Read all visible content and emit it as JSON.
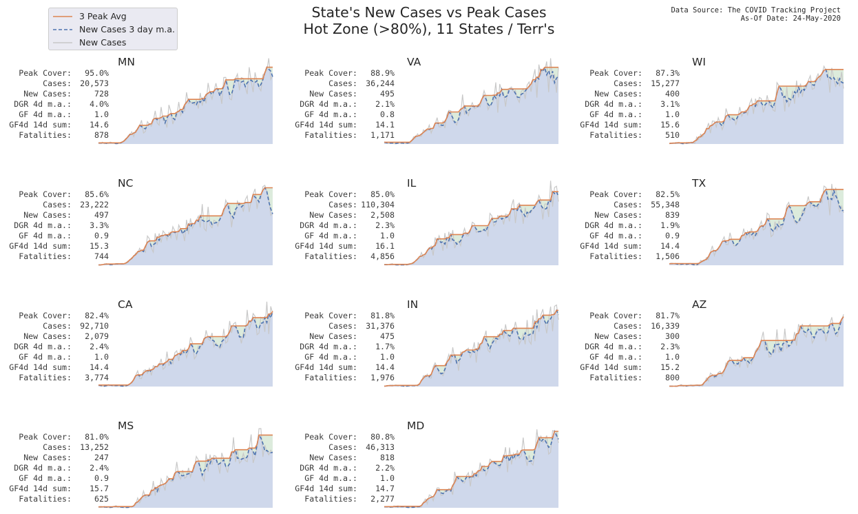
{
  "title_line1": "State's New Cases vs Peak Cases",
  "title_line2": "Hot Zone (>80%), 11 States / Terr's",
  "source_line1": "Data Source: The COVID Tracking Project",
  "source_line2": "As-Of Date: 24-May-2020",
  "legend": [
    {
      "label": "3 Peak Avg",
      "color": "#dd8452",
      "dash": "none"
    },
    {
      "label": "New Cases 3 day m.a.",
      "color": "#4c72b0",
      "dash": "5,3"
    },
    {
      "label": "New Cases",
      "color": "#c8c8c8",
      "dash": "none"
    }
  ],
  "stat_labels": [
    "Peak Cover:",
    "Cases:",
    "New Cases:",
    "DGR 4d m.a.:",
    "GF 4d m.a.:",
    "GF4d 14d sum:",
    "Fatalities:"
  ],
  "colors": {
    "peak": "#dd8452",
    "ma": "#4c72b0",
    "new_cases": "#c8c8c8",
    "area": "#cfd8eb",
    "gap": "#dcebdc"
  },
  "chart_data": [
    {
      "type": "area",
      "state": "MN",
      "stats": [
        "95.0%",
        "20,573",
        "728",
        "4.0%",
        "1.0",
        "14.6",
        "878"
      ]
    },
    {
      "type": "area",
      "state": "VA",
      "stats": [
        "88.9%",
        "36,244",
        "495",
        "2.1%",
        "0.8",
        "14.1",
        "1,171"
      ]
    },
    {
      "type": "area",
      "state": "WI",
      "stats": [
        "87.3%",
        "15,277",
        "400",
        "3.1%",
        "1.0",
        "15.6",
        "510"
      ]
    },
    {
      "type": "area",
      "state": "NC",
      "stats": [
        "85.6%",
        "23,222",
        "497",
        "3.3%",
        "0.9",
        "15.3",
        "744"
      ]
    },
    {
      "type": "area",
      "state": "IL",
      "stats": [
        "85.0%",
        "110,304",
        "2,508",
        "2.3%",
        "1.0",
        "16.1",
        "4,856"
      ]
    },
    {
      "type": "area",
      "state": "TX",
      "stats": [
        "82.5%",
        "55,348",
        "839",
        "1.9%",
        "0.9",
        "14.4",
        "1,506"
      ]
    },
    {
      "type": "area",
      "state": "CA",
      "stats": [
        "82.4%",
        "92,710",
        "2,079",
        "2.4%",
        "1.0",
        "14.4",
        "3,774"
      ]
    },
    {
      "type": "area",
      "state": "IN",
      "stats": [
        "81.8%",
        "31,376",
        "475",
        "1.7%",
        "1.0",
        "14.4",
        "1,976"
      ]
    },
    {
      "type": "area",
      "state": "AZ",
      "stats": [
        "81.7%",
        "16,339",
        "300",
        "2.3%",
        "1.0",
        "15.2",
        "800"
      ]
    },
    {
      "type": "area",
      "state": "MS",
      "stats": [
        "81.0%",
        "13,252",
        "247",
        "2.4%",
        "0.9",
        "15.7",
        "625"
      ]
    },
    {
      "type": "area",
      "state": "MD",
      "stats": [
        "80.8%",
        "46,313",
        "818",
        "2.2%",
        "1.0",
        "14.7",
        "2,277"
      ]
    }
  ]
}
